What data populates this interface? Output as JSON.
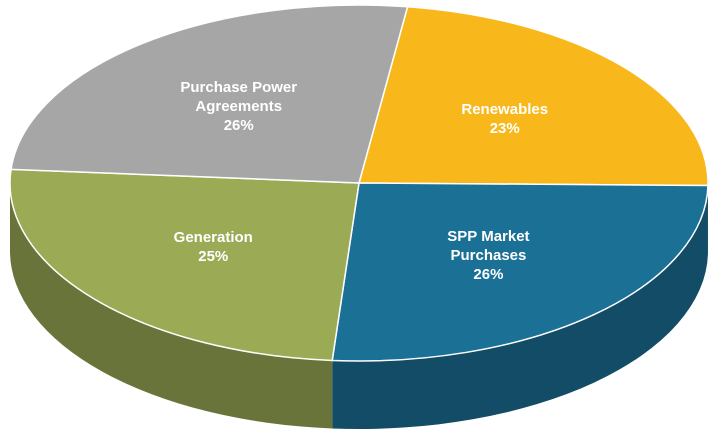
{
  "chart_data": {
    "type": "pie",
    "categories": [
      "Renewables",
      "SPP Market Purchases",
      "Generation",
      "Purchase Power Agreements"
    ],
    "values": [
      23,
      26,
      25,
      26
    ],
    "value_labels": [
      "23%",
      "26%",
      "25%",
      "26%"
    ],
    "colors": [
      "#f8b81c",
      "#1b7096",
      "#9bab55",
      "#a6a6a6"
    ]
  }
}
